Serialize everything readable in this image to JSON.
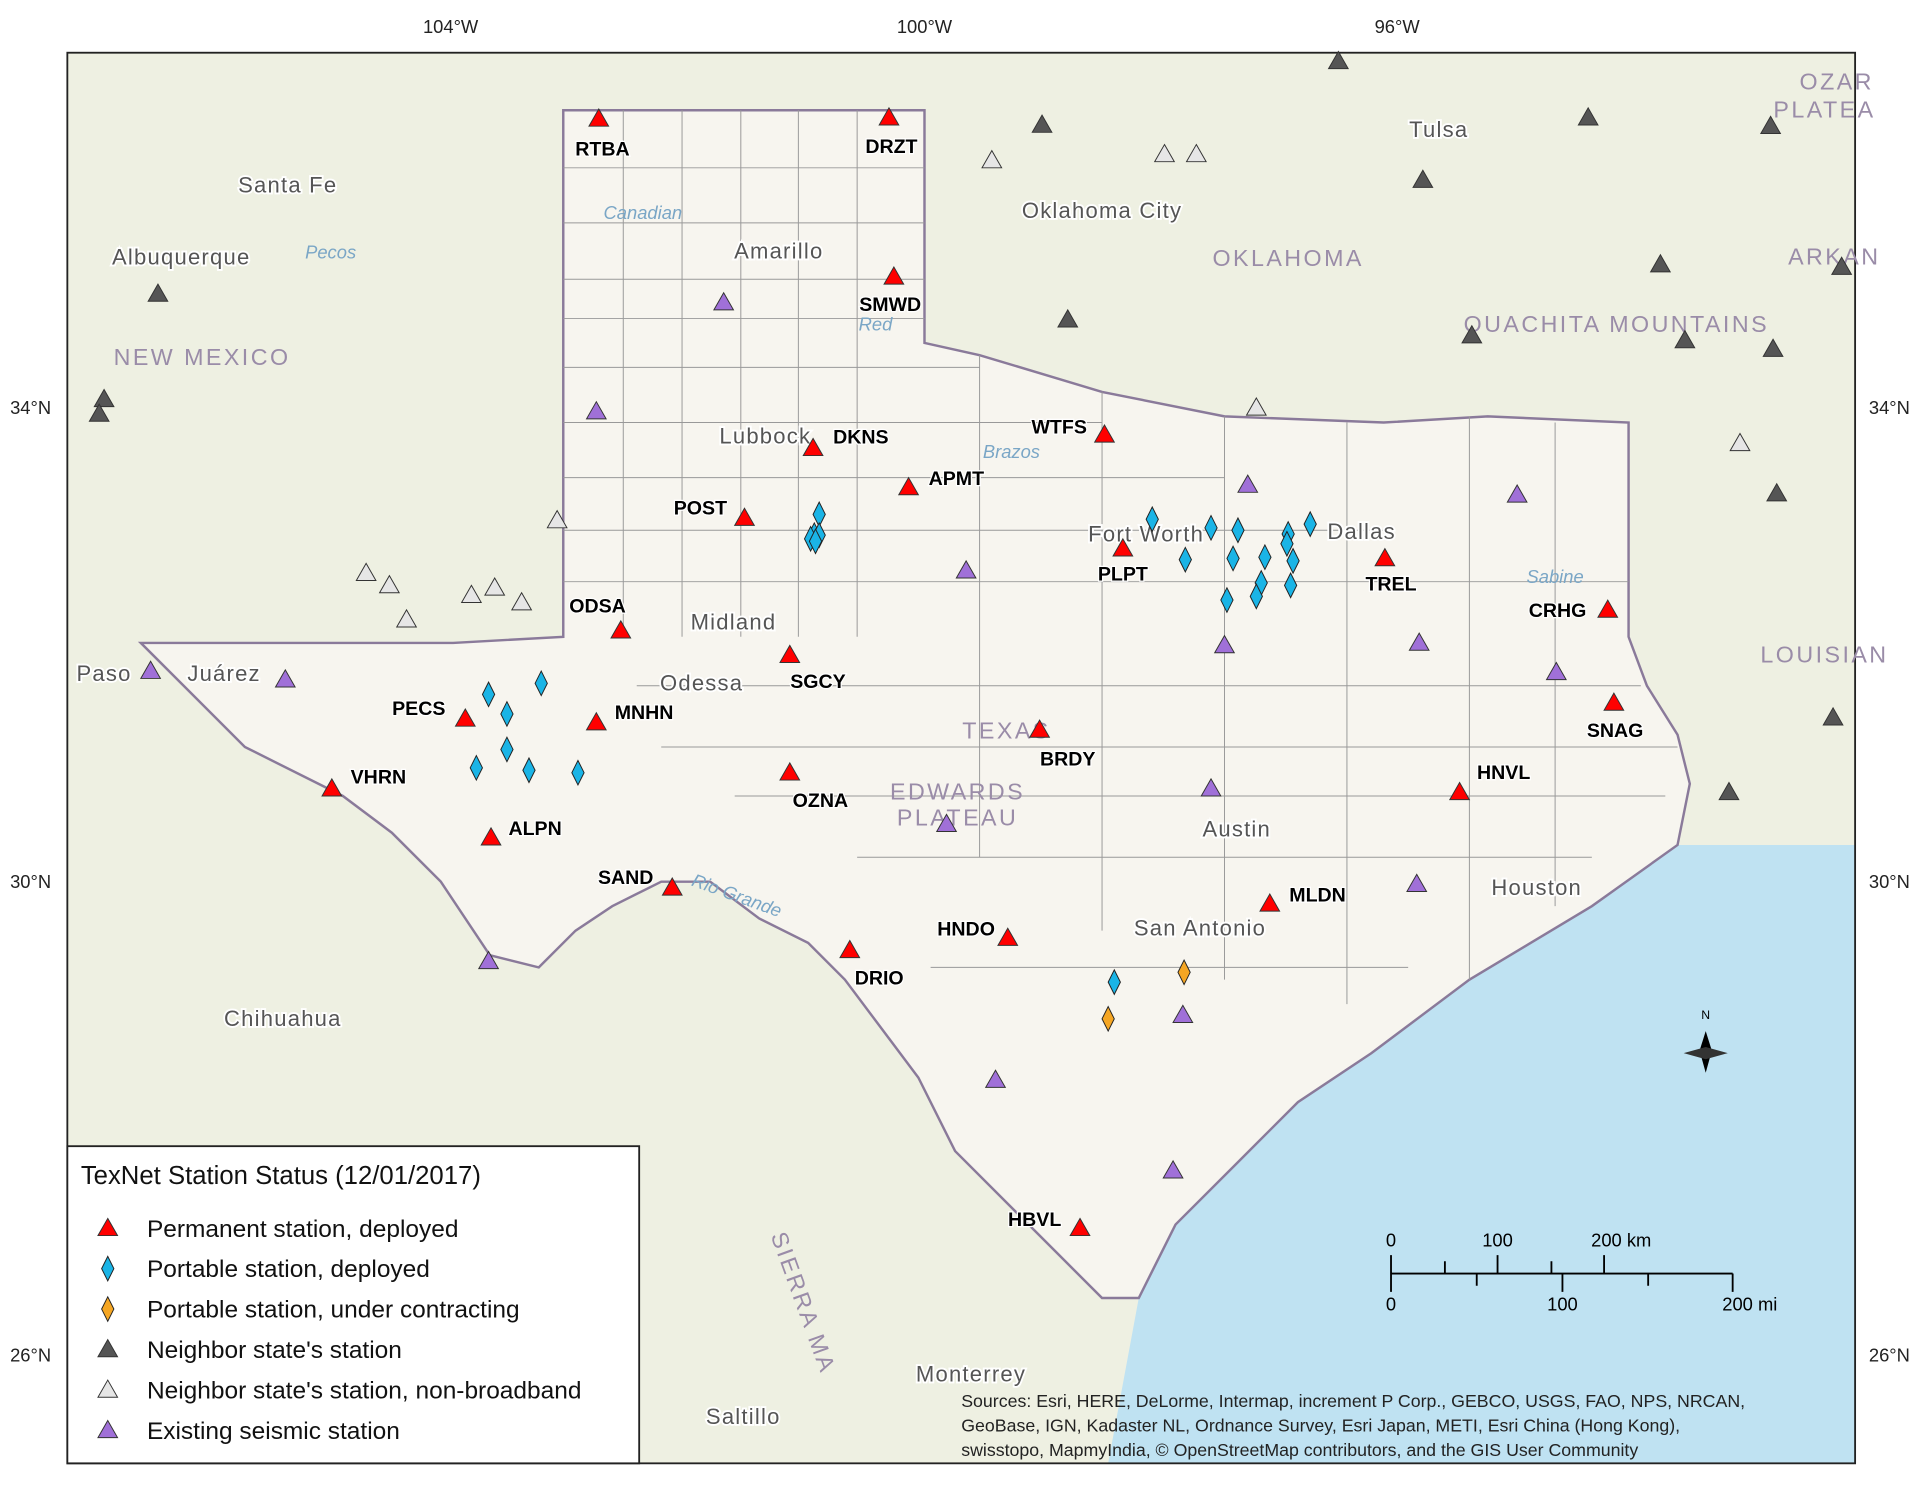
{
  "map": {
    "lon_labels": [
      "104°W",
      "100°W",
      "96°W"
    ],
    "lat_labels": [
      "34°N",
      "30°N",
      "26°N"
    ],
    "places": [
      {
        "name": "Santa Fe"
      },
      {
        "name": "Albuquerque"
      },
      {
        "name": "NEW MEXICO"
      },
      {
        "name": "Amarillo"
      },
      {
        "name": "Canadian"
      },
      {
        "name": "Pecos"
      },
      {
        "name": "Red"
      },
      {
        "name": "Oklahoma City"
      },
      {
        "name": "OKLAHOMA"
      },
      {
        "name": "Tulsa"
      },
      {
        "name": "OUACHITA MOUNTAINS"
      },
      {
        "name": "ARKAN"
      },
      {
        "name": "OZAR"
      },
      {
        "name": "PLATEA"
      },
      {
        "name": "Lubbock"
      },
      {
        "name": "Brazos"
      },
      {
        "name": "Fort Worth"
      },
      {
        "name": "Dallas"
      },
      {
        "name": "Sabine"
      },
      {
        "name": "Midland"
      },
      {
        "name": "Odessa"
      },
      {
        "name": "Juárez"
      },
      {
        "name": "Paso"
      },
      {
        "name": "TEXAS"
      },
      {
        "name": "EDWARDS"
      },
      {
        "name": "PLATEAU"
      },
      {
        "name": "LOUISIAN"
      },
      {
        "name": "Austin"
      },
      {
        "name": "Houston"
      },
      {
        "name": "San Antonio"
      },
      {
        "name": "Rio Grande"
      },
      {
        "name": "Chihuahua"
      },
      {
        "name": "SIERRA MA"
      },
      {
        "name": "Monterrey"
      },
      {
        "name": "Saltillo"
      }
    ],
    "stations": [
      "RTBA",
      "DRZT",
      "SMWD",
      "DKNS",
      "WTFS",
      "APMT",
      "POST",
      "PLPT",
      "TREL",
      "ODSA",
      "CRHG",
      "SGCY",
      "PECS",
      "MNHN",
      "SNAG",
      "BRDY",
      "VHRN",
      "OZNA",
      "HNVL",
      "ALPN",
      "SAND",
      "MLDN",
      "HNDO",
      "DRIO",
      "HBVL"
    ],
    "legend": {
      "title": "TexNet Station Status (12/01/2017)",
      "items": [
        {
          "label": "Permanent station, deployed",
          "color": "#ff0000",
          "shape": "triangle"
        },
        {
          "label": "Portable station, deployed",
          "color": "#1ab4e6",
          "shape": "diamond"
        },
        {
          "label": "Portable station, under contracting",
          "color": "#f5a623",
          "shape": "diamond"
        },
        {
          "label": "Neighbor state's station",
          "color": "#555555",
          "shape": "triangle"
        },
        {
          "label": "Neighbor state's station, non-broadband",
          "color": "#e6e6e6",
          "shape": "triangle"
        },
        {
          "label": "Existing seismic station",
          "color": "#a070d8",
          "shape": "triangle"
        }
      ]
    },
    "scale": {
      "km_labels": [
        "0",
        "100",
        "200 km"
      ],
      "mi_labels": [
        "0",
        "100",
        "200 mi"
      ]
    },
    "compass": "N",
    "sources": [
      "Sources: Esri, HERE, DeLorme, Intermap, increment P Corp., GEBCO, USGS, FAO, NPS, NRCAN,",
      "GeoBase, IGN, Kadaster NL, Ordnance Survey, Esri Japan, METI, Esri China (Hong Kong),",
      "swisstopo, MapmyIndia, © OpenStreetMap contributors, and the GIS User Community"
    ]
  }
}
